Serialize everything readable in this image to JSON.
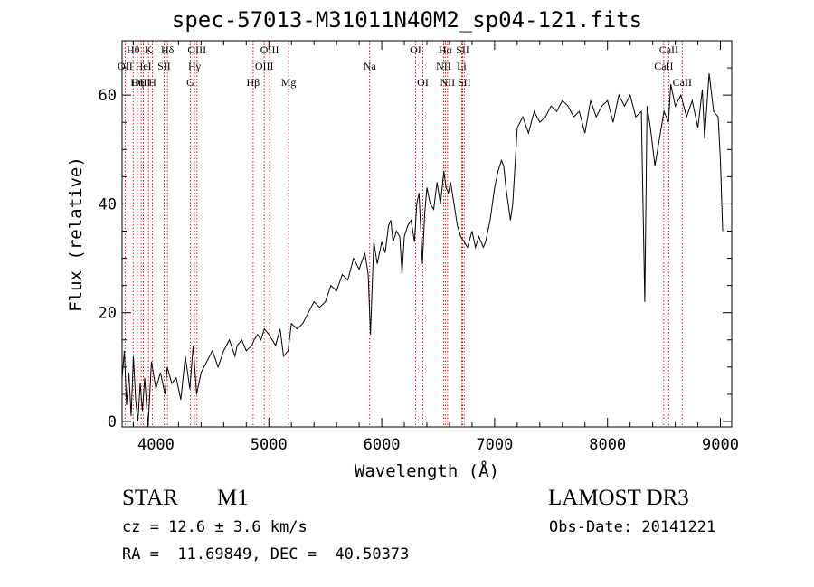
{
  "chart_data": {
    "type": "line",
    "title": "spec-57013-M31011N40M2_sp04-121.fits",
    "xlabel": "Wavelength (Å)",
    "ylabel": "Flux (relative)",
    "xlim": [
      3700,
      9100
    ],
    "ylim": [
      -1,
      70
    ],
    "xticks": [
      4000,
      5000,
      6000,
      7000,
      8000,
      9000
    ],
    "yticks": [
      0,
      20,
      40,
      60
    ],
    "grid": false,
    "series": [
      {
        "x": [
          3700,
          3720,
          3740,
          3760,
          3780,
          3800,
          3820,
          3840,
          3860,
          3880,
          3900,
          3930,
          3960,
          4000,
          4040,
          4080,
          4100,
          4140,
          4180,
          4220,
          4260,
          4300,
          4330,
          4360,
          4400,
          4450,
          4500,
          4550,
          4600,
          4650,
          4700,
          4720,
          4760,
          4800,
          4850,
          4870,
          4900,
          4930,
          4960,
          5000,
          5030,
          5060,
          5100,
          5130,
          5170,
          5200,
          5250,
          5300,
          5350,
          5400,
          5450,
          5500,
          5550,
          5600,
          5650,
          5700,
          5750,
          5800,
          5850,
          5880,
          5900,
          5930,
          5960,
          6000,
          6030,
          6060,
          6080,
          6100,
          6130,
          6160,
          6180,
          6200,
          6230,
          6260,
          6290,
          6310,
          6330,
          6360,
          6380,
          6400,
          6430,
          6460,
          6490,
          6520,
          6550,
          6570,
          6590,
          6610,
          6640,
          6670,
          6700,
          6730,
          6760,
          6800,
          6830,
          6860,
          6880,
          6900,
          6920,
          6940,
          6960,
          6980,
          7000,
          7030,
          7060,
          7080,
          7100,
          7120,
          7140,
          7160,
          7200,
          7250,
          7300,
          7350,
          7400,
          7450,
          7500,
          7550,
          7600,
          7650,
          7700,
          7750,
          7800,
          7850,
          7900,
          7950,
          8000,
          8050,
          8100,
          8150,
          8200,
          8250,
          8300,
          8330,
          8350,
          8380,
          8420,
          8460,
          8500,
          8540,
          8560,
          8600,
          8650,
          8700,
          8750,
          8800,
          8840,
          8860,
          8900,
          8940,
          8980,
          9000,
          9020
        ],
        "y": [
          8,
          13,
          3,
          9,
          1,
          12,
          4,
          0,
          7,
          2,
          8,
          -1,
          11,
          6,
          9,
          5,
          10,
          7,
          8,
          4,
          12,
          6,
          14,
          5,
          9,
          11,
          13,
          10,
          13,
          15,
          12,
          14,
          15,
          13,
          14,
          15,
          16,
          15,
          17,
          16,
          15,
          14,
          17,
          12,
          13,
          18,
          17,
          18,
          20,
          22,
          21,
          22,
          25,
          24,
          27,
          26,
          30,
          28,
          31,
          27,
          16,
          33,
          29,
          33,
          31,
          36,
          37,
          33,
          35,
          34,
          27,
          34,
          36,
          37,
          33,
          40,
          42,
          29,
          38,
          43,
          40,
          39,
          44,
          40,
          46,
          43,
          42,
          44,
          40,
          36,
          34,
          33,
          32,
          35,
          32,
          34,
          33,
          32,
          33,
          35,
          37,
          40,
          43,
          46,
          48,
          47,
          43,
          40,
          37,
          40,
          54,
          56,
          53,
          57,
          55,
          56,
          58,
          57,
          59,
          58,
          56,
          57,
          53,
          59,
          56,
          58,
          59,
          55,
          60,
          58,
          60,
          56,
          57,
          22,
          58,
          54,
          47,
          52,
          57,
          55,
          62,
          58,
          60,
          56,
          59,
          54,
          61,
          52,
          64,
          57,
          56,
          48,
          35
        ]
      }
    ],
    "line_markers": [
      {
        "label": "Hθ",
        "wl": 3798,
        "row": 1
      },
      {
        "label": "OII",
        "wl": 3727,
        "row": 2
      },
      {
        "label": "OIII",
        "wl": 3869,
        "row": 3
      },
      {
        "label": "K",
        "wl": 3934,
        "row": 1
      },
      {
        "label": "HeI",
        "wl": 3889,
        "row": 2
      },
      {
        "label": "Hη",
        "wl": 3835,
        "row": 3
      },
      {
        "label": "SII",
        "wl": 4072,
        "row": 2
      },
      {
        "label": "H",
        "wl": 3969,
        "row": 3
      },
      {
        "label": "Hδ",
        "wl": 4102,
        "row": 1
      },
      {
        "label": "OIII",
        "wl": 4363,
        "row": 1
      },
      {
        "label": "Hγ",
        "wl": 4341,
        "row": 2
      },
      {
        "label": "G",
        "wl": 4305,
        "row": 3
      },
      {
        "label": "Hβ",
        "wl": 4861,
        "row": 3
      },
      {
        "label": "OIII",
        "wl": 5007,
        "row": 1
      },
      {
        "label": "OIII",
        "wl": 4959,
        "row": 2
      },
      {
        "label": "Mg",
        "wl": 5175,
        "row": 3
      },
      {
        "label": "Na",
        "wl": 5893,
        "row": 2
      },
      {
        "label": "OI",
        "wl": 6300,
        "row": 1
      },
      {
        "label": "OI",
        "wl": 6364,
        "row": 3
      },
      {
        "label": "Hα",
        "wl": 6563,
        "row": 1
      },
      {
        "label": "NII",
        "wl": 6548,
        "row": 2
      },
      {
        "label": "NII",
        "wl": 6583,
        "row": 3
      },
      {
        "label": "SII",
        "wl": 6717,
        "row": 1
      },
      {
        "label": "Li",
        "wl": 6708,
        "row": 2
      },
      {
        "label": "SII",
        "wl": 6731,
        "row": 3
      },
      {
        "label": "CaII",
        "wl": 8542,
        "row": 1
      },
      {
        "label": "CaII",
        "wl": 8498,
        "row": 2
      },
      {
        "label": "CaII",
        "wl": 8662,
        "row": 3
      }
    ]
  },
  "info": {
    "object_type": "STAR",
    "subclass": "M1",
    "survey": "LAMOST DR3",
    "cz": "cz = 12.6 ± 3.6 km/s",
    "obs_date": "Obs-Date: 20141221",
    "coords": "RA =  11.69849, DEC =  40.50373"
  },
  "colors": {
    "marker": "#cc0000",
    "ink": "#000000"
  }
}
